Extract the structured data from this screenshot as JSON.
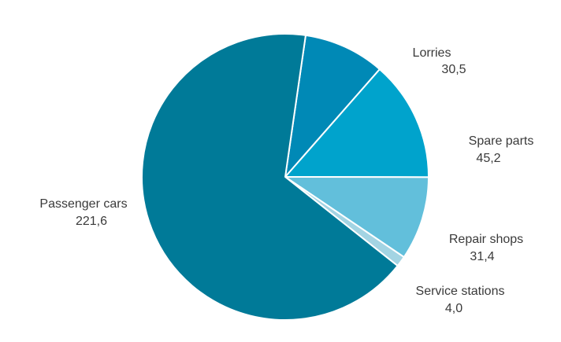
{
  "chart_data": {
    "type": "pie",
    "slices": [
      {
        "label": "Lorries",
        "value_text": "30,5",
        "value": 30.5,
        "color": "#0089b6"
      },
      {
        "label": "Spare parts",
        "value_text": "45,2",
        "value": 45.2,
        "color": "#00a3cc"
      },
      {
        "label": "Repair shops",
        "value_text": "31,4",
        "value": 31.4,
        "color": "#62bfdb"
      },
      {
        "label": "Service stations",
        "value_text": "4,0",
        "value": 4.0,
        "color": "#a3d4e3"
      },
      {
        "label": "Passenger cars",
        "value_text": "221,6",
        "value": 221.6,
        "color": "#007a98"
      }
    ]
  }
}
